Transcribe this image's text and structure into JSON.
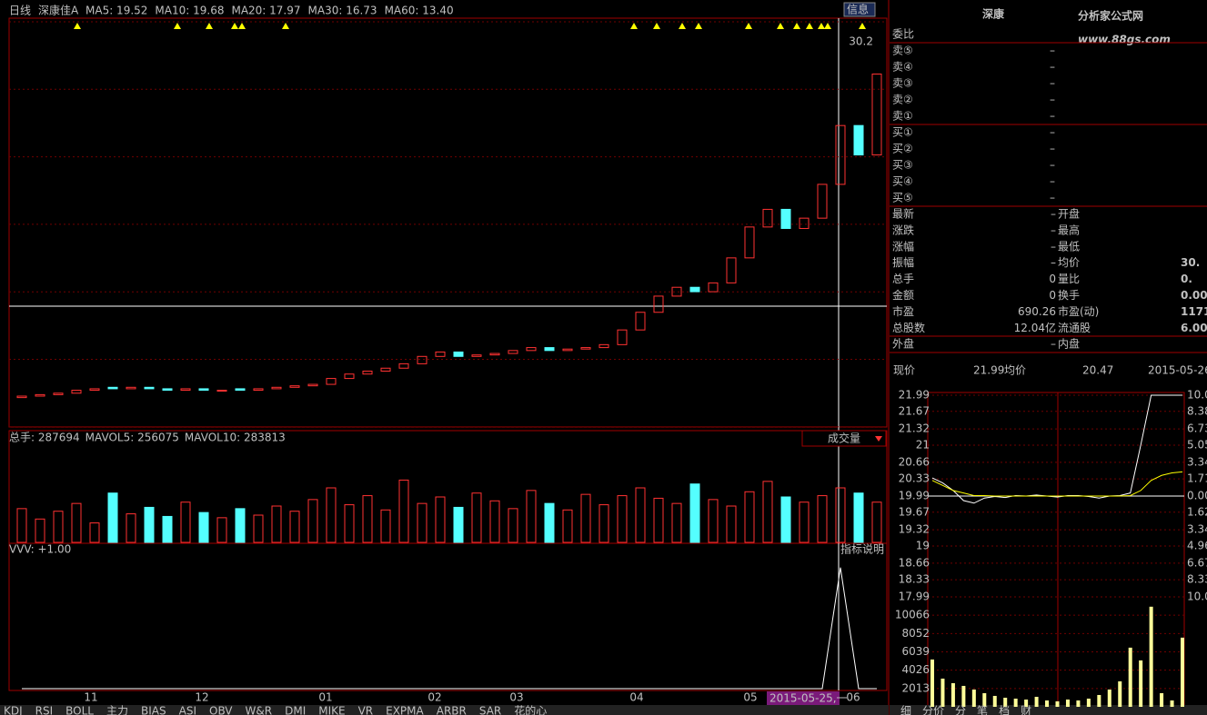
{
  "toolbar": {
    "period": "日线",
    "stock": "深康佳A",
    "ma": [
      {
        "label": "MA5: 19.52",
        "color": "#ffffff"
      },
      {
        "label": "MA10: 19.68",
        "color": "#ffff00"
      },
      {
        "label": "MA20: 17.97",
        "color": "#ff66ff"
      },
      {
        "label": "MA30: 16.73",
        "color": "#00e000"
      },
      {
        "label": "MA60: 13.40",
        "color": "#33ccff"
      }
    ],
    "info_button": "信息"
  },
  "chart_data": [
    {
      "type": "candlestick",
      "price_label": 30.2,
      "ylim": [
        4,
        31.8
      ],
      "open": [
        6.0,
        6.1,
        6.2,
        6.3,
        6.5,
        6.7,
        6.6,
        6.7,
        6.6,
        6.5,
        6.6,
        6.5,
        6.6,
        6.5,
        6.6,
        6.7,
        6.8,
        6.9,
        7.3,
        7.6,
        7.8,
        8.0,
        8.3,
        8.8,
        9.1,
        8.8,
        8.9,
        9.0,
        9.2,
        9.4,
        9.2,
        9.3,
        9.4,
        9.6,
        10.6,
        11.8,
        12.9,
        13.5,
        13.2,
        13.8,
        15.5,
        17.6,
        18.8,
        17.5,
        18.2,
        20.5,
        24.5,
        22.5
      ],
      "close": [
        6.1,
        6.2,
        6.3,
        6.5,
        6.6,
        6.6,
        6.7,
        6.6,
        6.5,
        6.6,
        6.5,
        6.5,
        6.5,
        6.6,
        6.7,
        6.8,
        6.9,
        7.3,
        7.6,
        7.8,
        8.0,
        8.3,
        8.8,
        9.1,
        8.8,
        8.9,
        9.0,
        9.2,
        9.4,
        9.2,
        9.3,
        9.4,
        9.6,
        10.6,
        11.8,
        12.9,
        13.5,
        13.2,
        13.8,
        15.5,
        17.6,
        18.8,
        17.5,
        18.2,
        20.5,
        24.5,
        22.5,
        28.0
      ],
      "x_labels": [
        "11",
        "12",
        "01",
        "02",
        "03",
        "04",
        "05",
        "06"
      ],
      "cursor_date": "2015-05-25,一",
      "up_color": "#ff3232",
      "down_color": "#54ffff"
    },
    {
      "type": "bar",
      "title": "总手: 287694",
      "mavol5": "MAVOL5: 256075",
      "mavol10": "MAVOL10: 283813",
      "selector": "成交量",
      "ylim": [
        0,
        700000
      ],
      "values": [
        260000,
        180000,
        240000,
        300000,
        150000,
        380000,
        220000,
        270000,
        200000,
        310000,
        230000,
        190000,
        260000,
        210000,
        280000,
        240000,
        330000,
        420000,
        290000,
        360000,
        250000,
        480000,
        300000,
        350000,
        270000,
        380000,
        320000,
        260000,
        400000,
        300000,
        250000,
        370000,
        290000,
        360000,
        420000,
        340000,
        300000,
        450000,
        330000,
        280000,
        390000,
        470000,
        350000,
        310000,
        360000,
        420000,
        380000,
        310000
      ]
    },
    {
      "type": "line",
      "title": "VVV: +1.00",
      "help": "指标说明",
      "ylim": [
        0,
        1.2
      ],
      "values": [
        0,
        0,
        0,
        0,
        0,
        0,
        0,
        0,
        0,
        0,
        0,
        0,
        0,
        0,
        0,
        0,
        0,
        0,
        0,
        0,
        0,
        0,
        0,
        0,
        0,
        0,
        0,
        0,
        0,
        0,
        0,
        0,
        0,
        0,
        0,
        0,
        0,
        0,
        0,
        0,
        0,
        0,
        0,
        0,
        0,
        1,
        0,
        0
      ]
    },
    {
      "type": "intraday",
      "now_label": "现价",
      "now": "21.99",
      "avg_label": "均价",
      "avg": "20.47",
      "date": "2015-05-26",
      "ylim": [
        17.99,
        21.99
      ],
      "yticks": [
        21.99,
        21.67,
        21.32,
        21.0,
        20.66,
        20.33,
        19.99,
        19.67,
        19.32,
        19.0,
        18.66,
        18.33,
        17.99
      ],
      "pct_ticks": [
        {
          "value": 10,
          "label": "10.00"
        },
        {
          "value": 8.38,
          "label": "8.38"
        },
        {
          "value": 6.73,
          "label": "6.73"
        },
        {
          "value": 5.05,
          "label": "5.05"
        },
        {
          "value": 3.34,
          "label": "3.34"
        },
        {
          "value": 1.71,
          "label": "1.71"
        },
        {
          "value": 0,
          "label": "0.00"
        },
        {
          "value": -1.62,
          "label": "1.62"
        },
        {
          "value": -3.34,
          "label": "3.34"
        },
        {
          "value": -4.96,
          "label": "4.96"
        },
        {
          "value": -6.67,
          "label": "6.67"
        },
        {
          "value": -8.33,
          "label": "8.33"
        },
        {
          "value": -10,
          "label": "10.0"
        }
      ],
      "price": [
        20.35,
        20.25,
        20.1,
        19.9,
        19.85,
        19.95,
        19.98,
        19.96,
        20.0,
        19.99,
        20.01,
        19.99,
        19.97,
        20.0,
        20.0,
        19.98,
        19.95,
        19.99,
        20.0,
        20.05,
        21.0,
        21.99,
        21.99,
        21.99,
        21.99
      ],
      "average": [
        20.3,
        20.2,
        20.1,
        20.05,
        20.0,
        20.0,
        19.99,
        19.99,
        19.99,
        19.99,
        19.99,
        19.99,
        19.99,
        19.99,
        19.99,
        19.99,
        19.99,
        19.99,
        19.99,
        20.0,
        20.1,
        20.3,
        20.4,
        20.45,
        20.47
      ],
      "vol_ylim": [
        0,
        12079
      ],
      "vol_ticks": [
        10066,
        8052,
        6039,
        4026,
        2013
      ],
      "volume": [
        5200,
        3100,
        2600,
        2300,
        1900,
        1500,
        1200,
        1000,
        900,
        800,
        1100,
        700,
        600,
        800,
        700,
        900,
        1300,
        1900,
        2800,
        6500,
        5100,
        11000,
        1500,
        700,
        7600
      ]
    }
  ],
  "quote": {
    "name": "深康",
    "logo": "分析家公式网",
    "site": "www.88gs.com",
    "order_ratio": "委比",
    "book": [
      {
        "label": "卖⑤",
        "value": "–"
      },
      {
        "label": "卖④",
        "value": "–"
      },
      {
        "label": "卖③",
        "value": "–"
      },
      {
        "label": "卖②",
        "value": "–"
      },
      {
        "label": "卖①",
        "value": "–"
      },
      {
        "label": "买①",
        "value": "–"
      },
      {
        "label": "买②",
        "value": "–"
      },
      {
        "label": "买③",
        "value": "–"
      },
      {
        "label": "买④",
        "value": "–"
      },
      {
        "label": "买⑤",
        "value": "–"
      }
    ],
    "stats": [
      {
        "l1": "最新",
        "v1": "–",
        "l2": "开盘"
      },
      {
        "l1": "涨跌",
        "v1": "–",
        "l2": "最高"
      },
      {
        "l1": "涨幅",
        "v1": "–",
        "l2": "最低"
      },
      {
        "l1": "振幅",
        "v1": "–",
        "l2": "均价",
        "v2": "30."
      },
      {
        "l1": "总手",
        "v1": "0",
        "l2": "量比",
        "v2": "0."
      },
      {
        "l1": "金额",
        "v1": "0",
        "l2": "换手",
        "v2": "0.00"
      },
      {
        "l1": "市盈",
        "v1": "690.26",
        "l2": "市盈(动)",
        "v2": "1171."
      },
      {
        "l1": "总股数",
        "v1": "12.04亿",
        "l2": "流通股",
        "v2": "6.00"
      },
      {
        "l1": "外盘",
        "v1": "–",
        "l2": "内盘"
      }
    ]
  },
  "tabs": [
    "KDJ",
    "RSI",
    "BOLL",
    "主力",
    "BIAS",
    "ASI",
    "OBV",
    "W&R",
    "DMI",
    "MIKE",
    "VR",
    "EXPMA",
    "ARBR",
    "SAR",
    "花的心"
  ],
  "side_tabs": [
    "细",
    "分价",
    "分",
    "笔",
    "档",
    "财"
  ]
}
